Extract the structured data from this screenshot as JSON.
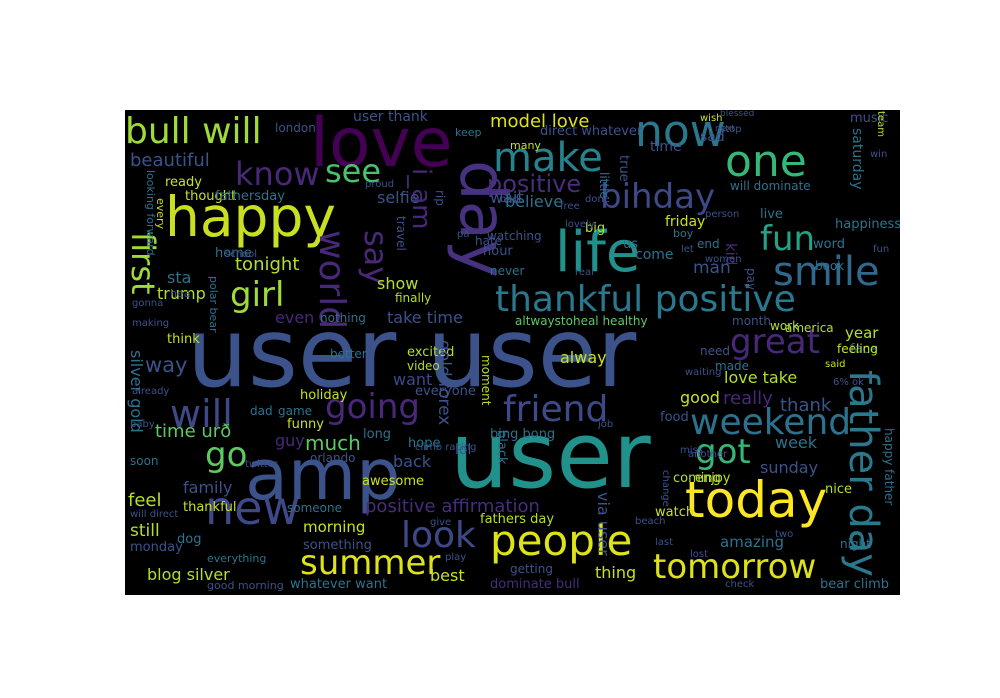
{
  "palette": {
    "dark_purple": "#440154",
    "indigo": "#3b528b",
    "teal": "#21918c",
    "green": "#5ec962",
    "yellow": "#fde725"
  },
  "words": [
    {
      "text": "user user",
      "c": "#3b528b"
    },
    {
      "text": "user",
      "c": "#21918c"
    },
    {
      "text": "amp",
      "c": "#3b528b"
    },
    {
      "text": "love",
      "c": "#440154"
    },
    {
      "text": "happy",
      "c": "#c8e020"
    },
    {
      "text": "day",
      "c": "#46327e"
    },
    {
      "text": "today",
      "c": "#fde725"
    },
    {
      "text": "life",
      "c": "#21918c"
    },
    {
      "text": "now",
      "c": "#2a788e"
    },
    {
      "text": "one",
      "c": "#35b779"
    },
    {
      "text": "new",
      "c": "#3e4989"
    },
    {
      "text": "people",
      "c": "#dde318"
    },
    {
      "text": "father day",
      "c": "#2a788e"
    },
    {
      "text": "smile",
      "c": "#31688e"
    },
    {
      "text": "bull will",
      "c": "#a0da39"
    },
    {
      "text": "make",
      "c": "#26828e"
    },
    {
      "text": "thankful positive",
      "c": "#2a788e"
    },
    {
      "text": "tomorrow",
      "c": "#dde318"
    },
    {
      "text": "weekend",
      "c": "#2c728e"
    },
    {
      "text": "bihday",
      "c": "#3e4989"
    },
    {
      "text": "friend",
      "c": "#3e4989"
    },
    {
      "text": "summer",
      "c": "#dde318"
    },
    {
      "text": "world",
      "c": "#482878"
    },
    {
      "text": "see",
      "c": "#4ac16d"
    },
    {
      "text": "know",
      "c": "#482878"
    },
    {
      "text": "great",
      "c": "#482878"
    },
    {
      "text": "fun",
      "c": "#20a386"
    },
    {
      "text": "got",
      "c": "#35b779"
    },
    {
      "text": "girl",
      "c": "#a0da39"
    },
    {
      "text": "going",
      "c": "#482878"
    },
    {
      "text": "will",
      "c": "#3e4989"
    },
    {
      "text": "look",
      "c": "#3e4989"
    },
    {
      "text": "first",
      "c": "#a0da39"
    },
    {
      "text": "go",
      "c": "#5ec962"
    },
    {
      "text": "say",
      "c": "#482878"
    },
    {
      "text": "positive",
      "c": "#472d7b"
    },
    {
      "text": "i_am",
      "c": "#482878"
    },
    {
      "text": "model love",
      "c": "#dde318"
    },
    {
      "text": "beautiful",
      "c": "#3b528b"
    },
    {
      "text": "ready",
      "c": "#c8e020"
    },
    {
      "text": "thought",
      "c": "#c8e020"
    },
    {
      "text": "fathersday",
      "c": "#2c728e"
    },
    {
      "text": "home",
      "c": "#2c728e"
    },
    {
      "text": "tonight",
      "c": "#b5de2b"
    },
    {
      "text": "sta",
      "c": "#2c728e"
    },
    {
      "text": "trump",
      "c": "#b5de2b"
    },
    {
      "text": "hea",
      "c": "#3b528b"
    },
    {
      "text": "polar bear",
      "c": "#2c728e"
    },
    {
      "text": "even",
      "c": "#482878"
    },
    {
      "text": "nothing",
      "c": "#2c728e"
    },
    {
      "text": "better",
      "c": "#2c728e"
    },
    {
      "text": "take time",
      "c": "#3b528b"
    },
    {
      "text": "show",
      "c": "#b5de2b"
    },
    {
      "text": "finally",
      "c": "#b5de2b"
    },
    {
      "text": "altwaystoheal healthy",
      "c": "#5ec962"
    },
    {
      "text": "think",
      "c": "#c8e020"
    },
    {
      "text": "way",
      "c": "#3b528b"
    },
    {
      "text": "silver gold",
      "c": "#2c728e"
    },
    {
      "text": "time urð",
      "c": "#5ec962"
    },
    {
      "text": "dad",
      "c": "#2c728e"
    },
    {
      "text": "game",
      "c": "#2c728e"
    },
    {
      "text": "funny",
      "c": "#c8e020"
    },
    {
      "text": "holiday",
      "c": "#c8e020"
    },
    {
      "text": "everyone",
      "c": "#3b528b"
    },
    {
      "text": "excited",
      "c": "#b5de2b"
    },
    {
      "text": "video",
      "c": "#b5de2b"
    },
    {
      "text": "moment",
      "c": "#b5de2b"
    },
    {
      "text": "gold forex",
      "c": "#3b528b"
    },
    {
      "text": "want",
      "c": "#3e4989"
    },
    {
      "text": "guy",
      "c": "#482878"
    },
    {
      "text": "much",
      "c": "#5ec962"
    },
    {
      "text": "orlando",
      "c": "#3b528b"
    },
    {
      "text": "long",
      "c": "#2c728e"
    },
    {
      "text": "hope",
      "c": "#2c728e"
    },
    {
      "text": "back",
      "c": "#3b528b"
    },
    {
      "text": "lol",
      "c": "#3b528b"
    },
    {
      "text": "black",
      "c": "#2c728e"
    },
    {
      "text": "awesome",
      "c": "#c8e020"
    },
    {
      "text": "family",
      "c": "#3b528b"
    },
    {
      "text": "feel",
      "c": "#b5de2b"
    },
    {
      "text": "thankful",
      "c": "#c8e020"
    },
    {
      "text": "someone",
      "c": "#2c728e"
    },
    {
      "text": "positive affirmation",
      "c": "#472d7b"
    },
    {
      "text": "fathers day",
      "c": "#b5de2b"
    },
    {
      "text": "morning",
      "c": "#c8e020"
    },
    {
      "text": "something",
      "c": "#3b528b"
    },
    {
      "text": "still",
      "c": "#b5de2b"
    },
    {
      "text": "monday",
      "c": "#3b528b"
    },
    {
      "text": "dog",
      "c": "#2c728e"
    },
    {
      "text": "everything",
      "c": "#2c728e"
    },
    {
      "text": "blog silver",
      "c": "#b5de2b"
    },
    {
      "text": "good morning",
      "c": "#3b528b"
    },
    {
      "text": "whatever want",
      "c": "#2c728e"
    },
    {
      "text": "best",
      "c": "#c8e020"
    },
    {
      "text": "getting",
      "c": "#3b528b"
    },
    {
      "text": "dominate bull",
      "c": "#472d7b"
    },
    {
      "text": "thing",
      "c": "#c8e020"
    },
    {
      "text": "play",
      "c": "#3b528b"
    },
    {
      "text": "give",
      "c": "#3b528b"
    },
    {
      "text": "via user",
      "c": "#3b528b"
    },
    {
      "text": "watch",
      "c": "#c8e020"
    },
    {
      "text": "amazing",
      "c": "#2c728e"
    },
    {
      "text": "coming",
      "c": "#b5de2b"
    },
    {
      "text": "enjoy",
      "c": "#b5de2b"
    },
    {
      "text": "sunday",
      "c": "#3b528b"
    },
    {
      "text": "week",
      "c": "#2c728e"
    },
    {
      "text": "nice",
      "c": "#b5de2b"
    },
    {
      "text": "night",
      "c": "#2c728e"
    },
    {
      "text": "happy father",
      "c": "#2c728e"
    },
    {
      "text": "bear climb",
      "c": "#2c728e"
    },
    {
      "text": "thank",
      "c": "#3b528b"
    },
    {
      "text": "really",
      "c": "#482878"
    },
    {
      "text": "good",
      "c": "#c8e020"
    },
    {
      "text": "food",
      "c": "#3b528b"
    },
    {
      "text": "love take",
      "c": "#b5de2b"
    },
    {
      "text": "year",
      "c": "#b5de2b"
    },
    {
      "text": "face",
      "c": "#2c728e"
    },
    {
      "text": "america",
      "c": "#b5de2b"
    },
    {
      "text": "work",
      "c": "#b5de2b"
    },
    {
      "text": "month",
      "c": "#3b528b"
    },
    {
      "text": "need",
      "c": "#3b528b"
    },
    {
      "text": "made",
      "c": "#2c728e"
    },
    {
      "text": "kid",
      "c": "#482878"
    },
    {
      "text": "man",
      "c": "#3b528b"
    },
    {
      "text": "pay",
      "c": "#3b528b"
    },
    {
      "text": "word",
      "c": "#2c728e"
    },
    {
      "text": "book",
      "c": "#2c728e"
    },
    {
      "text": "feeling",
      "c": "#c8e020"
    },
    {
      "text": "happiness",
      "c": "#2c728e"
    },
    {
      "text": "live",
      "c": "#2c728e"
    },
    {
      "text": "end",
      "c": "#2c728e"
    },
    {
      "text": "boy",
      "c": "#2c728e"
    },
    {
      "text": "us",
      "c": "#2c728e"
    },
    {
      "text": "big",
      "c": "#b5de2b"
    },
    {
      "text": "come",
      "c": "#2c728e"
    },
    {
      "text": "alway",
      "c": "#c8e020"
    },
    {
      "text": "wait",
      "c": "#3b528b"
    },
    {
      "text": "believe",
      "c": "#2c728e"
    },
    {
      "text": "selfie",
      "c": "#3b528b"
    },
    {
      "text": "watching",
      "c": "#3b528b"
    },
    {
      "text": "hour",
      "c": "#3b528b"
    },
    {
      "text": "never",
      "c": "#2c728e"
    },
    {
      "text": "time",
      "c": "#3b528b"
    },
    {
      "text": "friday",
      "c": "#c8e020"
    },
    {
      "text": "will dominate",
      "c": "#2c728e"
    },
    {
      "text": "sad",
      "c": "#3b528b"
    },
    {
      "text": "wish",
      "c": "#c8e020"
    },
    {
      "text": "music",
      "c": "#3b528b"
    },
    {
      "text": "saturday",
      "c": "#2c728e"
    },
    {
      "text": "team",
      "c": "#b5de2b"
    },
    {
      "text": "direct whatever",
      "c": "#3b528b"
    },
    {
      "text": "keep",
      "c": "#2c728e"
    },
    {
      "text": "user thank",
      "c": "#3b528b"
    },
    {
      "text": "london",
      "c": "#3b528b"
    },
    {
      "text": "blessed",
      "c": "#3b528b"
    },
    {
      "text": "many",
      "c": "#c8e020"
    },
    {
      "text": "true",
      "c": "#3b528b"
    },
    {
      "text": "little",
      "c": "#2c728e"
    },
    {
      "text": "hate",
      "c": "#3b528b"
    },
    {
      "text": "rip",
      "c": "#3b528b"
    },
    {
      "text": "travel",
      "c": "#3b528b"
    },
    {
      "text": "proud",
      "c": "#3b528b"
    },
    {
      "text": "looking forward",
      "c": "#2c728e"
    },
    {
      "text": "every",
      "c": "#c8e020"
    },
    {
      "text": "school",
      "c": "#3b528b"
    },
    {
      "text": "gonna",
      "c": "#3b528b"
    },
    {
      "text": "making",
      "c": "#3b528b"
    },
    {
      "text": "already",
      "c": "#3b528b"
    },
    {
      "text": "baby",
      "c": "#3b528b"
    },
    {
      "text": "soon",
      "c": "#2c728e"
    },
    {
      "text": "will direct",
      "c": "#3b528b"
    },
    {
      "text": "twitter",
      "c": "#3b528b"
    },
    {
      "text": "bing bong",
      "c": "#2c728e"
    },
    {
      "text": "job",
      "c": "#3b528b"
    },
    {
      "text": "miss",
      "c": "#3b528b"
    },
    {
      "text": "another",
      "c": "#3b528b"
    },
    {
      "text": "change",
      "c": "#3b528b"
    },
    {
      "text": "beach",
      "c": "#3b528b"
    },
    {
      "text": "last",
      "c": "#3b528b"
    },
    {
      "text": "lost",
      "c": "#3b528b"
    },
    {
      "text": "two",
      "c": "#3b528b"
    },
    {
      "text": "check",
      "c": "#3b528b"
    },
    {
      "text": "6% ok",
      "c": "#3b528b"
    },
    {
      "text": "said",
      "c": "#c8e020"
    },
    {
      "text": "waiting",
      "c": "#3b528b"
    },
    {
      "text": "let",
      "c": "#3b528b"
    },
    {
      "text": "women",
      "c": "#3b528b"
    },
    {
      "text": "fun",
      "c": "#3b528b"
    },
    {
      "text": "person",
      "c": "#3b528b"
    },
    {
      "text": "stop",
      "c": "#3b528b"
    },
    {
      "text": "win",
      "c": "#3b528b"
    },
    {
      "text": "next",
      "c": "#3b528b"
    },
    {
      "text": "bad",
      "c": "#3b528b"
    },
    {
      "text": "free",
      "c": "#3b528b"
    },
    {
      "text": "done",
      "c": "#3b528b"
    },
    {
      "text": "lovely",
      "c": "#3b528b"
    },
    {
      "text": "pa",
      "c": "#3b528b"
    },
    {
      "text": "climb racing",
      "c": "#3b528b"
    },
    {
      "text": "real",
      "c": "#3b528b"
    }
  ]
}
